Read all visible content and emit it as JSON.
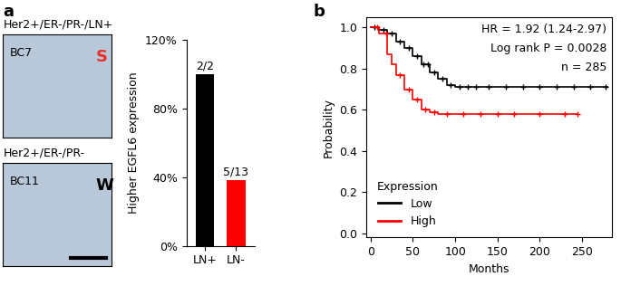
{
  "panel_labels": [
    "a",
    "b"
  ],
  "images": [
    {
      "title": "Her2+/ER-/PR-/LN+",
      "sample": "BC7",
      "mark": "S",
      "color": "#e8302a"
    },
    {
      "title": "Her2+/ER-/PR-",
      "sample": "BC11",
      "mark": "W",
      "color": "#000000"
    }
  ],
  "chart_data": [
    {
      "type": "bar",
      "categories": [
        "LN+",
        "LN-"
      ],
      "values": [
        100,
        38.46
      ],
      "value_labels": [
        "2/2",
        "5/13"
      ],
      "data_labels": true,
      "colors": [
        "#000000",
        "#ff0000"
      ],
      "ylabel": "Higher EGFL6 expression",
      "ylim": [
        0,
        120
      ],
      "yticks": [
        {
          "value": 0,
          "label": "0%"
        },
        {
          "value": 40,
          "label": "40%"
        },
        {
          "value": 80,
          "label": "80%"
        },
        {
          "value": 120,
          "label": "120%"
        }
      ]
    },
    {
      "type": "line",
      "xlabel": "Months",
      "ylabel": "Probability",
      "annotations": [
        "HR = 1.92 (1.24-2.97)",
        "Log rank P = 0.0028",
        "n = 285"
      ],
      "legend_title": "Expression",
      "legend": "lower left",
      "line_style": "steps",
      "marker": "+",
      "xlim": [
        -5,
        285
      ],
      "xticks": [
        0,
        50,
        100,
        150,
        200,
        250
      ],
      "ylim": [
        -0.02,
        1.05
      ],
      "yticks": [
        {
          "value": 0.0,
          "label": "0.0"
        },
        0.2,
        0.4,
        0.6,
        0.8,
        {
          "value": 1.0,
          "label": "1.0"
        }
      ],
      "series": [
        {
          "name": "Low",
          "color": "#000000",
          "x": [
            0,
            10,
            20,
            30,
            40,
            50,
            60,
            70,
            80,
            90,
            100,
            280
          ],
          "values": [
            1.0,
            0.99,
            0.97,
            0.93,
            0.9,
            0.86,
            0.82,
            0.78,
            0.75,
            0.72,
            0.71,
            0.71
          ],
          "censored": [
            5,
            15,
            25,
            35,
            45,
            55,
            62,
            68,
            75,
            85,
            95,
            105,
            115,
            125,
            140,
            160,
            180,
            200,
            220,
            240,
            260,
            278
          ]
        },
        {
          "name": "High",
          "color": "#ff0000",
          "x": [
            0,
            10,
            20,
            25,
            30,
            40,
            50,
            60,
            70,
            80,
            245
          ],
          "values": [
            1.0,
            0.97,
            0.87,
            0.82,
            0.77,
            0.7,
            0.65,
            0.6,
            0.59,
            0.58,
            0.58
          ],
          "censored": [
            8,
            18,
            35,
            45,
            55,
            65,
            75,
            90,
            110,
            130,
            150,
            170,
            200,
            230,
            245
          ]
        }
      ]
    }
  ]
}
